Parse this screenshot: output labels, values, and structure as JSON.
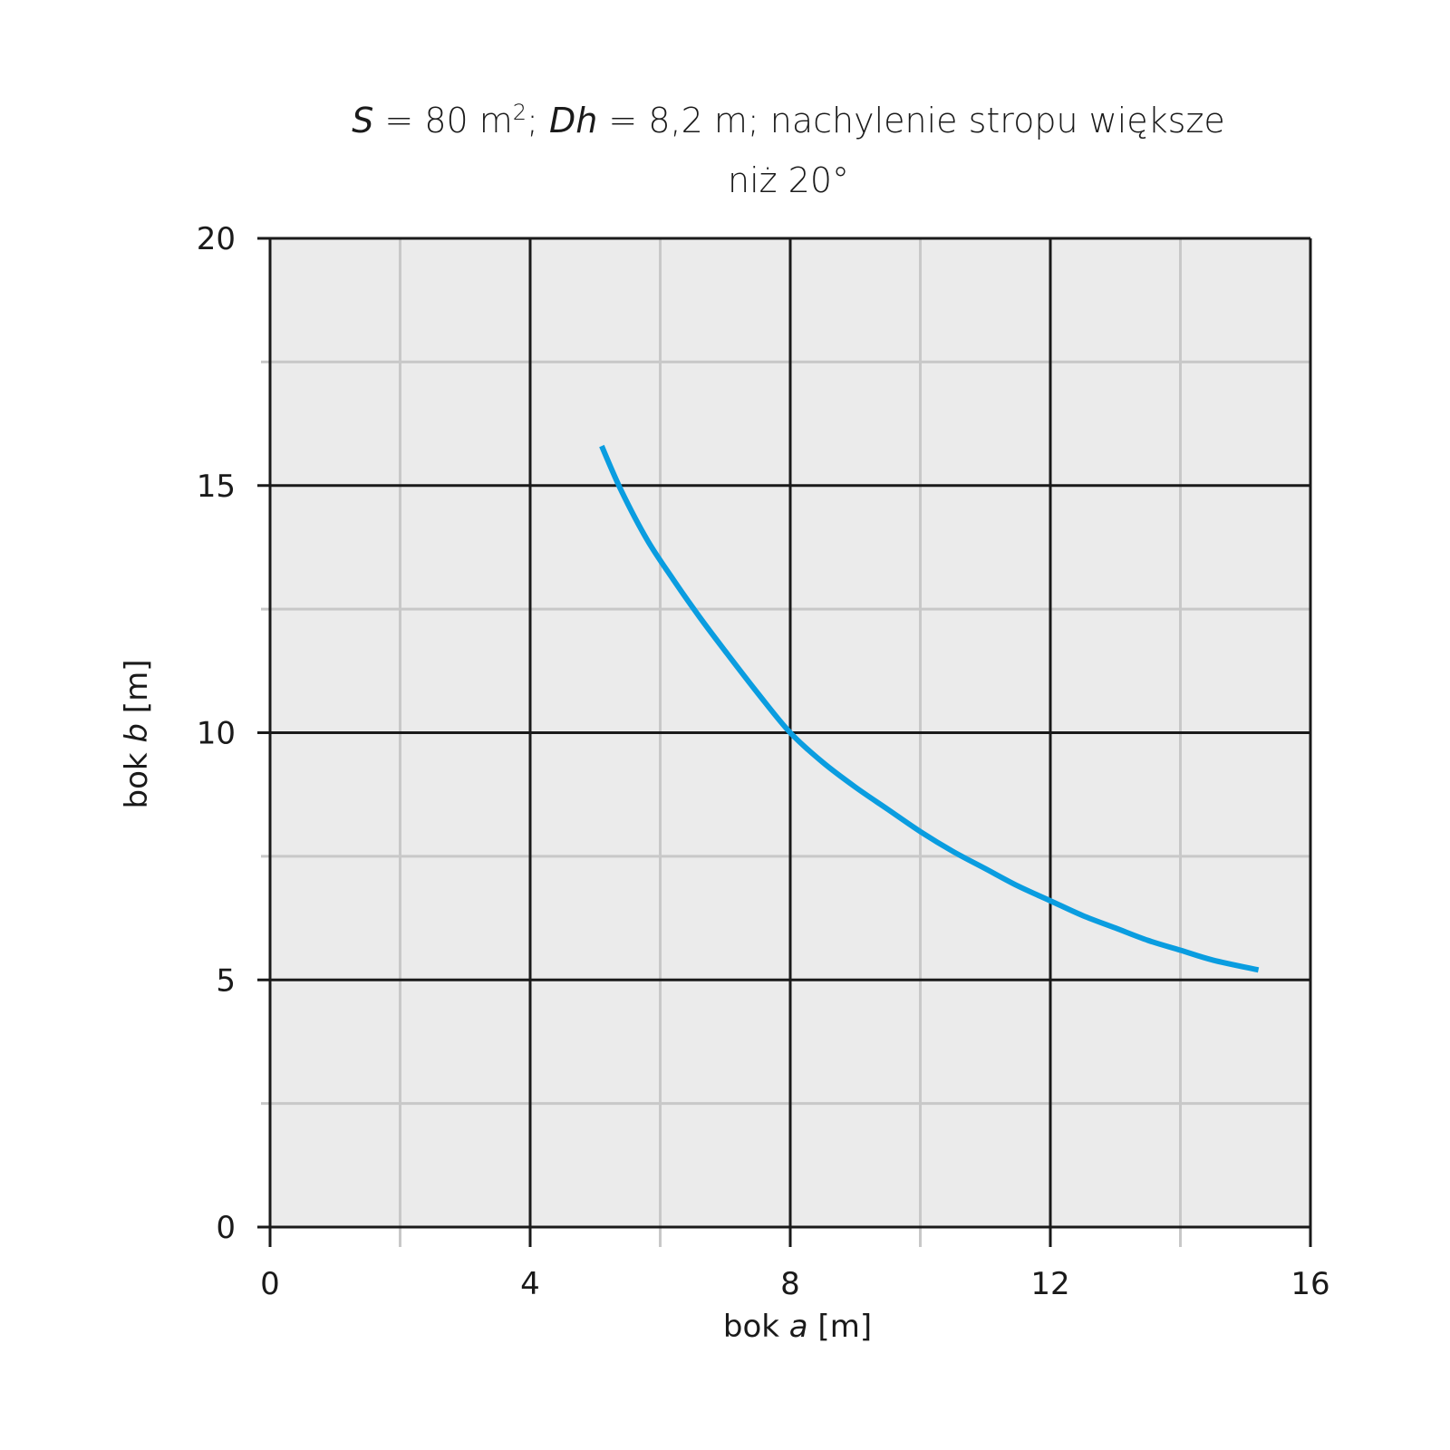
{
  "chart_data": {
    "type": "line",
    "title": {
      "s_var": "S",
      "s_value": " = 80 m",
      "s_sup": "2",
      "dh_sep": "; ",
      "dh_var": "Dh",
      "dh_rest": " = 8,2 m; nachylenie stropu większe",
      "line2": "niż 20°"
    },
    "xlabel": {
      "prefix": "bok ",
      "var": "a",
      "suffix": " [m]"
    },
    "ylabel": {
      "prefix": "bok ",
      "var": "b",
      "suffix": " [m]"
    },
    "xlim": [
      0,
      16
    ],
    "ylim": [
      0,
      20
    ],
    "x_major_ticks": [
      0,
      4,
      8,
      12,
      16
    ],
    "x_minor_ticks": [
      2,
      6,
      10,
      14
    ],
    "y_major_ticks": [
      0,
      5,
      10,
      15,
      20
    ],
    "y_minor_ticks": [
      2.5,
      7.5,
      12.5,
      17.5
    ],
    "x_tick_labels": [
      "0",
      "4",
      "8",
      "12",
      "16"
    ],
    "y_tick_labels": [
      "0",
      "5",
      "10",
      "15",
      "20"
    ],
    "grid": true,
    "series": [
      {
        "color": "#0a9de0",
        "x": [
          5.1,
          5.4,
          5.8,
          6.2,
          6.6,
          7.0,
          7.5,
          8.0,
          8.5,
          9.0,
          9.5,
          10.0,
          10.5,
          11.0,
          11.5,
          12.0,
          12.5,
          13.0,
          13.5,
          14.0,
          14.5,
          15.2
        ],
        "y": [
          15.8,
          14.9,
          13.9,
          13.1,
          12.35,
          11.65,
          10.8,
          10.0,
          9.4,
          8.9,
          8.45,
          8.0,
          7.6,
          7.25,
          6.9,
          6.6,
          6.3,
          6.05,
          5.8,
          5.6,
          5.4,
          5.2
        ]
      }
    ],
    "colors": {
      "plot_background": "#ebebeb",
      "major_grid": "#1a1a1a",
      "minor_grid": "#c8c8c8",
      "line": "#0a9de0"
    }
  }
}
